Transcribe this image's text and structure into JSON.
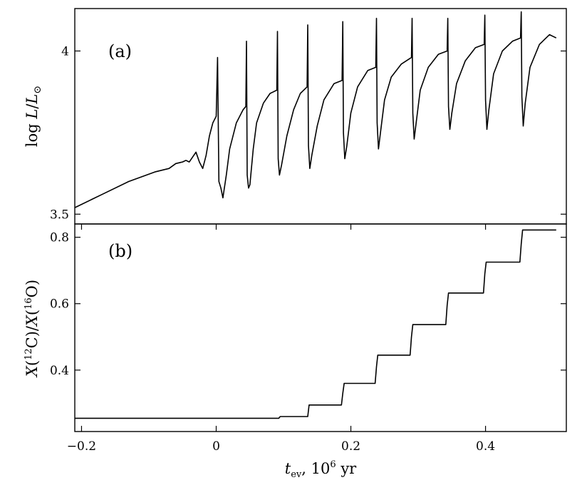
{
  "chart_data": [
    {
      "panel": "(a)",
      "type": "line",
      "ylabel": "log L/L⊙",
      "ylabel_parts": [
        "log ",
        "L",
        "/",
        "L",
        "⊙"
      ],
      "xlim": [
        -0.21,
        0.52
      ],
      "ylim": [
        3.47,
        4.13
      ],
      "yticks": [
        3.5,
        4.0
      ],
      "ytick_labels": [
        "3.5",
        "4"
      ],
      "grid": false,
      "series": [
        {
          "name": "log L/L⊙",
          "x": [
            -0.21,
            -0.17,
            -0.13,
            -0.09,
            -0.07,
            -0.06,
            -0.05,
            -0.045,
            -0.04,
            -0.035,
            -0.03,
            -0.025,
            -0.02,
            -0.015,
            -0.01,
            -0.005,
            0.0,
            0.002,
            0.004,
            0.007,
            0.01,
            0.015,
            0.02,
            0.03,
            0.04,
            0.044,
            0.045,
            0.046,
            0.048,
            0.05,
            0.055,
            0.06,
            0.07,
            0.08,
            0.09,
            0.091,
            0.092,
            0.094,
            0.097,
            0.105,
            0.115,
            0.125,
            0.135,
            0.136,
            0.137,
            0.139,
            0.142,
            0.15,
            0.16,
            0.175,
            0.187,
            0.188,
            0.189,
            0.191,
            0.194,
            0.2,
            0.21,
            0.225,
            0.237,
            0.238,
            0.239,
            0.241,
            0.244,
            0.25,
            0.26,
            0.275,
            0.29,
            0.291,
            0.292,
            0.294,
            0.297,
            0.303,
            0.315,
            0.33,
            0.343,
            0.344,
            0.345,
            0.347,
            0.35,
            0.357,
            0.37,
            0.385,
            0.398,
            0.399,
            0.4,
            0.402,
            0.405,
            0.412,
            0.425,
            0.44,
            0.452,
            0.453,
            0.454,
            0.456,
            0.459,
            0.466,
            0.48,
            0.495,
            0.505
          ],
          "y": [
            3.52,
            3.56,
            3.6,
            3.63,
            3.64,
            3.655,
            3.66,
            3.665,
            3.66,
            3.675,
            3.69,
            3.66,
            3.64,
            3.68,
            3.74,
            3.78,
            3.8,
            3.98,
            3.6,
            3.58,
            3.55,
            3.62,
            3.7,
            3.78,
            3.82,
            3.83,
            4.03,
            3.62,
            3.58,
            3.59,
            3.7,
            3.78,
            3.84,
            3.87,
            3.88,
            4.06,
            3.67,
            3.62,
            3.65,
            3.74,
            3.82,
            3.87,
            3.89,
            4.08,
            3.71,
            3.64,
            3.68,
            3.77,
            3.85,
            3.9,
            3.91,
            4.09,
            3.75,
            3.67,
            3.71,
            3.81,
            3.89,
            3.94,
            3.95,
            4.1,
            3.78,
            3.7,
            3.75,
            3.85,
            3.92,
            3.96,
            3.98,
            4.1,
            3.81,
            3.73,
            3.78,
            3.88,
            3.95,
            3.99,
            4.0,
            4.1,
            3.83,
            3.76,
            3.81,
            3.9,
            3.97,
            4.01,
            4.02,
            4.11,
            3.85,
            3.76,
            3.82,
            3.93,
            4.0,
            4.03,
            4.04,
            4.12,
            3.86,
            3.77,
            3.84,
            3.95,
            4.02,
            4.05,
            4.04
          ]
        }
      ]
    },
    {
      "panel": "(b)",
      "type": "line",
      "ylabel": "X(12C)/X(16O)",
      "ylabel_parts": [
        "X",
        "(",
        "12",
        "C)/",
        "X",
        "(",
        "16",
        "O)"
      ],
      "xlabel": "t_ev, 10^6 yr",
      "xlabel_parts": [
        "t",
        "ev",
        ", 10",
        "6",
        "  yr"
      ],
      "xlim": [
        -0.21,
        0.52
      ],
      "ylim": [
        0.215,
        0.84
      ],
      "xticks": [
        -0.2,
        0.0,
        0.2,
        0.4
      ],
      "xtick_labels": [
        "−0.2",
        "0",
        "0.2",
        "0.4"
      ],
      "yticks": [
        0.4,
        0.6,
        0.8
      ],
      "ytick_labels": [
        "0.4",
        "0.6",
        "0.8"
      ],
      "grid": false,
      "series": [
        {
          "name": "X(12C)/X(16O)",
          "x": [
            -0.21,
            0.093,
            0.095,
            0.136,
            0.138,
            0.186,
            0.188,
            0.19,
            0.236,
            0.238,
            0.24,
            0.288,
            0.29,
            0.292,
            0.341,
            0.343,
            0.345,
            0.397,
            0.399,
            0.401,
            0.451,
            0.453,
            0.455,
            0.505
          ],
          "y": [
            0.255,
            0.255,
            0.26,
            0.26,
            0.295,
            0.295,
            0.33,
            0.36,
            0.36,
            0.41,
            0.445,
            0.445,
            0.5,
            0.537,
            0.537,
            0.595,
            0.632,
            0.632,
            0.69,
            0.725,
            0.725,
            0.78,
            0.822,
            0.822
          ]
        }
      ]
    }
  ]
}
